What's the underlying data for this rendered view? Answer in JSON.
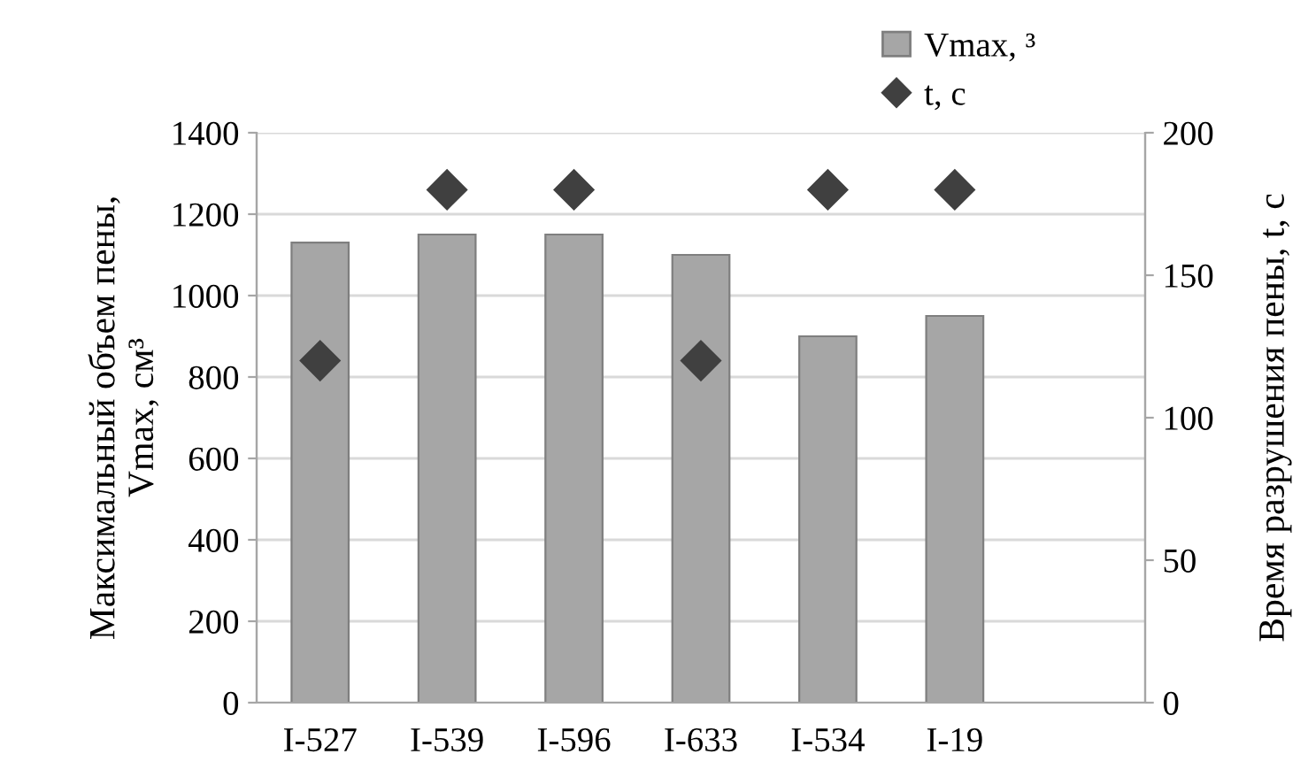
{
  "chart_data": {
    "type": "bar",
    "categories": [
      "I-527",
      "I-539",
      "I-596",
      "I-633",
      "I-534",
      "I-19",
      null
    ],
    "series": [
      {
        "name": "Vmax, ³",
        "color": "#a6a6a6",
        "values": [
          1130,
          1150,
          1150,
          1100,
          900,
          950,
          null
        ]
      },
      {
        "name": "t, с",
        "type": "scatter",
        "axis": "y2",
        "color": "#404040",
        "marker": "diamond",
        "values": [
          120,
          180,
          180,
          120,
          180,
          180,
          null
        ]
      }
    ],
    "ylabel": "Максимальный объем пены,\nVmax, см³",
    "y2label": "Время разрушения пены, t, с",
    "ylim": [
      0,
      1400
    ],
    "yticks": [
      0,
      200,
      400,
      600,
      800,
      1000,
      1200,
      1400
    ],
    "y2lim": [
      0,
      200
    ],
    "y2ticks": [
      0,
      50,
      100,
      150,
      200
    ],
    "grid": "y",
    "legend": "top right"
  }
}
